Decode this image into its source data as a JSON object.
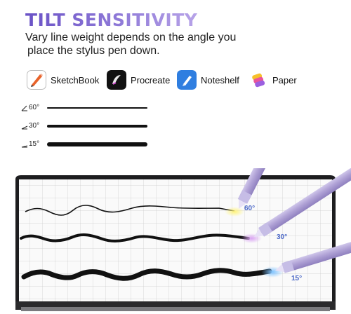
{
  "header": {
    "title": "TILT SENSITIVITY",
    "subtitle_line1": "Vary line weight depends on the angle you",
    "subtitle_line2": "place the stylus pen down."
  },
  "apps": [
    {
      "name": "SketchBook",
      "icon": "sketchbook-icon"
    },
    {
      "name": "Procreate",
      "icon": "procreate-icon"
    },
    {
      "name": "Noteshelf",
      "icon": "noteshelf-icon"
    },
    {
      "name": "Paper",
      "icon": "paper-icon"
    }
  ],
  "tilt_samples": [
    {
      "angle": "60°"
    },
    {
      "angle": "30°"
    },
    {
      "angle": "15°"
    }
  ],
  "pen_labels": {
    "p60": "60°",
    "p30": "30°",
    "p15": "15°"
  },
  "colors": {
    "title_gradient_start": "#6a52c6",
    "title_gradient_end": "#b7a3e8",
    "stylus_body": "#b3a6d6",
    "angle_label": "#4b68c7",
    "glow_60": "#fff37a",
    "glow_30": "#d9a3f2",
    "glow_15": "#7fc3ff"
  }
}
